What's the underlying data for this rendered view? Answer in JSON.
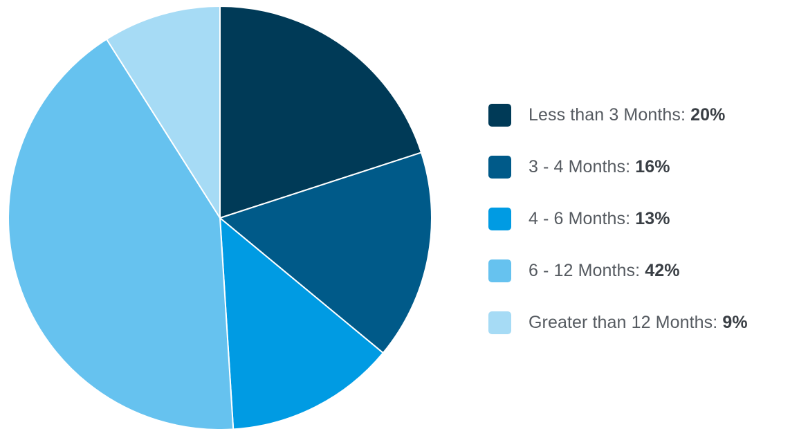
{
  "chart_data": {
    "type": "pie",
    "title": "",
    "categories": [
      "Less than 3 Months",
      "3 - 4 Months",
      "4 - 6 Months",
      "6 - 12 Months",
      "Greater than 12 Months"
    ],
    "values": [
      20,
      16,
      13,
      42,
      9
    ],
    "value_labels": [
      "20%",
      "16%",
      "13%",
      "42%",
      "9%"
    ],
    "colors": [
      "#003a57",
      "#005a89",
      "#009be3",
      "#66c2ef",
      "#a6dbf5"
    ],
    "start_angle": "12 o'clock",
    "direction": "clockwise",
    "legend_position": "right",
    "grid": false
  }
}
